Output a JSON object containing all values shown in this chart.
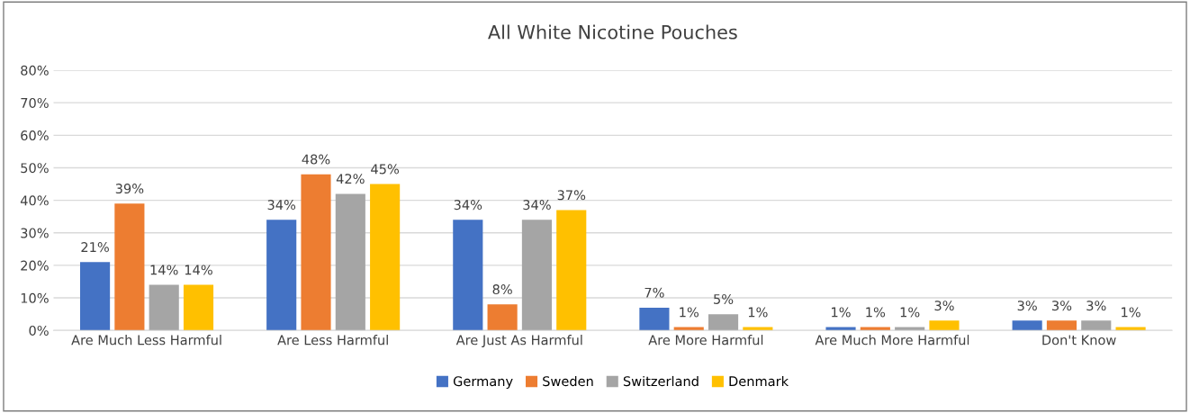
{
  "chart_data": {
    "type": "bar",
    "title": "All White Nicotine Pouches",
    "categories": [
      "Are Much Less Harmful",
      "Are Less Harmful",
      "Are Just As Harmful",
      "Are More Harmful",
      "Are Much More Harmful",
      "Don't Know"
    ],
    "series": [
      {
        "name": "Germany",
        "color": "#4472c4",
        "values": [
          21,
          34,
          34,
          7,
          1,
          3
        ],
        "value_labels": [
          "21%",
          "34%",
          "34%",
          "7%",
          "1%",
          "3%"
        ]
      },
      {
        "name": "Sweden",
        "color": "#ed7d31",
        "values": [
          39,
          48,
          8,
          1,
          1,
          3
        ],
        "value_labels": [
          "39%",
          "48%",
          "8%",
          "1%",
          "1%",
          "3%"
        ]
      },
      {
        "name": "Switzerland",
        "color": "#a5a5a5",
        "values": [
          14,
          42,
          34,
          5,
          1,
          3
        ],
        "value_labels": [
          "14%",
          "42%",
          "34%",
          "5%",
          "1%",
          "3%"
        ]
      },
      {
        "name": "Denmark",
        "color": "#ffc000",
        "values": [
          14,
          45,
          37,
          1,
          3,
          1
        ],
        "value_labels": [
          "14%",
          "45%",
          "37%",
          "1%",
          "3%",
          "1%"
        ]
      }
    ],
    "ylim": [
      0,
      80
    ],
    "yticks": [
      {
        "value": 0,
        "label": "0%"
      },
      {
        "value": 10,
        "label": "10%"
      },
      {
        "value": 20,
        "label": "20%"
      },
      {
        "value": 30,
        "label": "30%"
      },
      {
        "value": 40,
        "label": "40%"
      },
      {
        "value": 50,
        "label": "50%"
      },
      {
        "value": 60,
        "label": "60%"
      },
      {
        "value": 70,
        "label": "70%"
      },
      {
        "value": 80,
        "label": "80%"
      }
    ],
    "grid": "y",
    "legend": "bottom"
  }
}
